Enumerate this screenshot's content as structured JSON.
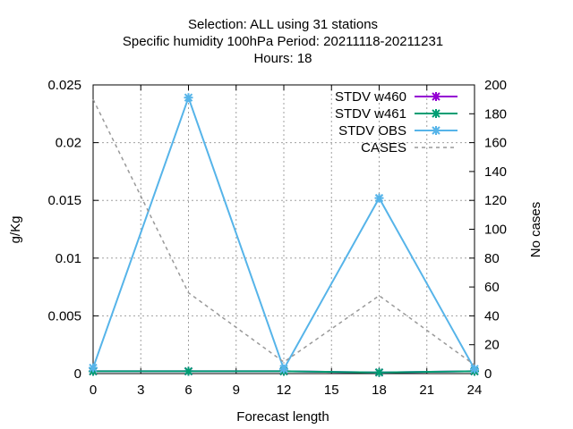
{
  "chart_data": {
    "type": "line",
    "title_lines": [
      "Selection: ALL using    31 stations",
      "Specific humidity 100hPa   Period: 20211118-20211231",
      "Hours:  18"
    ],
    "xlabel": "Forecast length",
    "ylabel": "g/Kg",
    "y2label": "No cases",
    "xlim": [
      0,
      24
    ],
    "ylim": [
      0,
      0.025
    ],
    "y2lim": [
      0,
      200
    ],
    "x_ticks": [
      0,
      3,
      6,
      9,
      12,
      15,
      18,
      21,
      24
    ],
    "y_ticks": [
      "0",
      "0.005",
      "0.01",
      "0.015",
      "0.02",
      "0.025"
    ],
    "y_tick_values": [
      0,
      0.005,
      0.01,
      0.015,
      0.02,
      0.025
    ],
    "y2_ticks": [
      0,
      20,
      40,
      60,
      80,
      100,
      120,
      140,
      160,
      180,
      200
    ],
    "grid": true,
    "legend_position": "top-right",
    "x": [
      0,
      6,
      12,
      18,
      24
    ],
    "series": [
      {
        "name": "STDV w460",
        "axis": "y",
        "color": "#9400d3",
        "marker": "x",
        "dashed": false,
        "values": [
          0.0002,
          0.0002,
          0.0002,
          0.0001,
          0.0002
        ]
      },
      {
        "name": "STDV w461",
        "axis": "y",
        "color": "#009e73",
        "marker": "x",
        "dashed": false,
        "values": [
          0.0002,
          0.0002,
          0.0002,
          0.0001,
          0.0002
        ]
      },
      {
        "name": "STDV OBS",
        "axis": "y",
        "color": "#56b4e9",
        "marker": "x",
        "dashed": false,
        "values": [
          0.0005,
          0.0239,
          0.0004,
          0.0152,
          0.0004
        ]
      },
      {
        "name": "CASES",
        "axis": "y2",
        "color": "#999999",
        "marker": "none",
        "dashed": true,
        "values": [
          190,
          56,
          8,
          54,
          6
        ]
      }
    ]
  }
}
